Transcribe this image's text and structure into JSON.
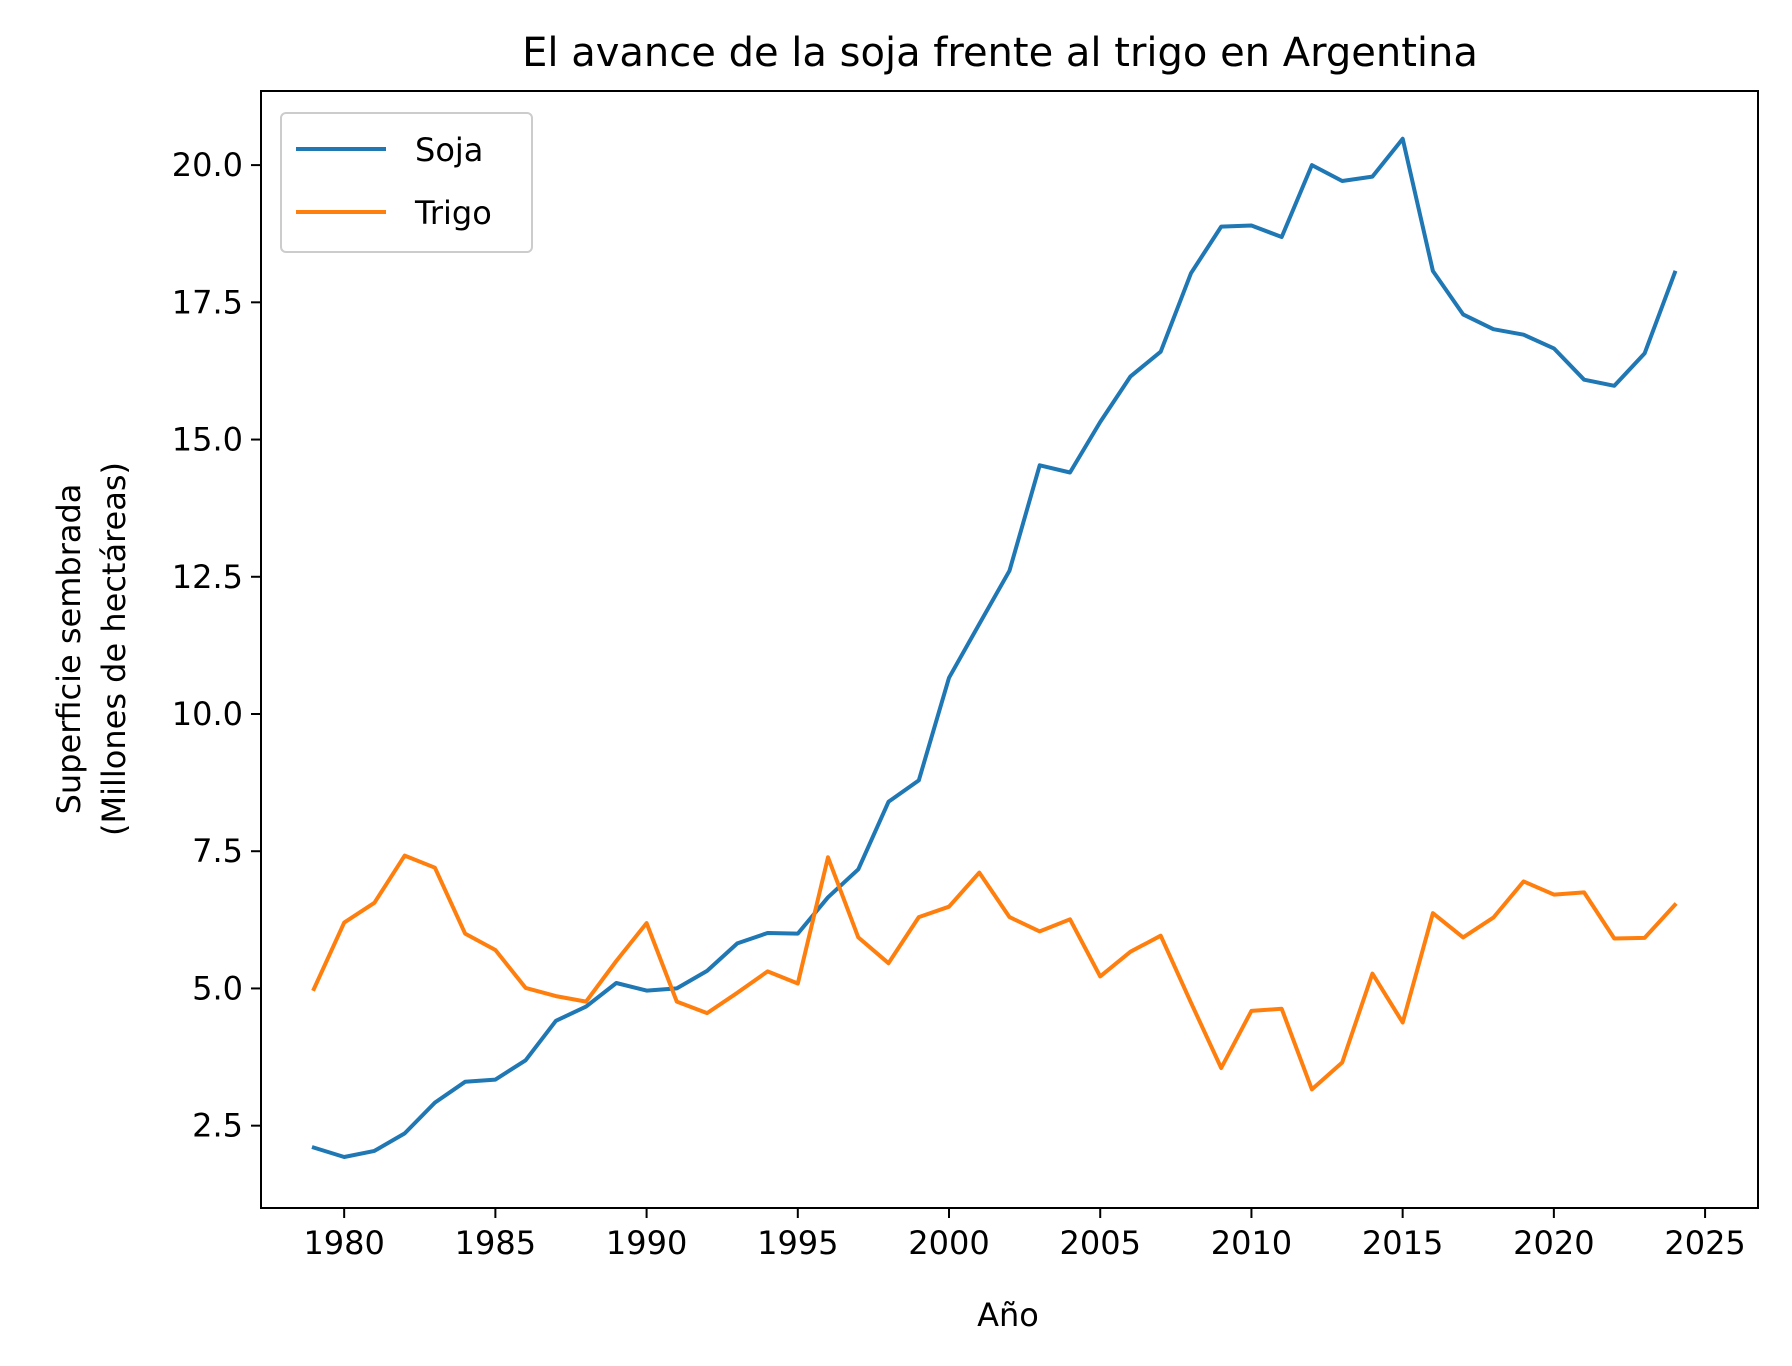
{
  "chart_data": {
    "type": "line",
    "title": "El avance de la soja frente al trigo en Argentina",
    "xlabel": "Año",
    "ylabel_lines": [
      "Superficie sembrada",
      "(Millones de hectáreas)"
    ],
    "xlim": [
      1977.25,
      2026.75
    ],
    "ylim": [
      1.0,
      21.35
    ],
    "x_ticks": [
      1980,
      1985,
      1990,
      1995,
      2000,
      2005,
      2010,
      2015,
      2020,
      2025
    ],
    "x_tick_labels": [
      "1980",
      "1985",
      "1990",
      "1995",
      "2000",
      "2005",
      "2010",
      "2015",
      "2020",
      "2025"
    ],
    "y_ticks": [
      2.5,
      5.0,
      7.5,
      10.0,
      12.5,
      15.0,
      17.5,
      20.0
    ],
    "y_tick_labels": [
      "2.5",
      "5.0",
      "7.5",
      "10.0",
      "12.5",
      "15.0",
      "17.5",
      "20.0"
    ],
    "grid": false,
    "legend_position": "top-left",
    "x": [
      1979,
      1980,
      1981,
      1982,
      1983,
      1984,
      1985,
      1986,
      1987,
      1988,
      1989,
      1990,
      1991,
      1992,
      1993,
      1994,
      1995,
      1996,
      1997,
      1998,
      1999,
      2000,
      2001,
      2002,
      2003,
      2004,
      2005,
      2006,
      2007,
      2008,
      2009,
      2010,
      2011,
      2012,
      2013,
      2014,
      2015,
      2016,
      2017,
      2018,
      2019,
      2020,
      2021,
      2022,
      2023,
      2024
    ],
    "series": [
      {
        "name": "Soja",
        "color": "#1f77b4",
        "values": [
          2.1,
          1.93,
          2.04,
          2.36,
          2.92,
          3.3,
          3.34,
          3.69,
          4.41,
          4.67,
          5.1,
          4.96,
          5.0,
          5.32,
          5.82,
          6.01,
          6.0,
          6.66,
          7.17,
          8.4,
          8.79,
          10.66,
          11.64,
          12.61,
          14.53,
          14.4,
          15.32,
          16.15,
          16.6,
          18.03,
          18.88,
          18.9,
          18.69,
          20.0,
          19.71,
          19.79,
          20.48,
          18.07,
          17.28,
          17.01,
          16.91,
          16.66,
          16.09,
          15.98,
          16.57,
          18.04
        ]
      },
      {
        "name": "Trigo",
        "color": "#ff7f0e",
        "values": [
          4.99,
          6.2,
          6.56,
          7.42,
          7.2,
          6.0,
          5.7,
          5.01,
          4.86,
          4.76,
          5.5,
          6.19,
          4.76,
          4.55,
          4.92,
          5.31,
          5.09,
          7.39,
          5.93,
          5.46,
          6.3,
          6.49,
          7.11,
          6.3,
          6.04,
          6.26,
          5.22,
          5.67,
          5.96,
          4.74,
          3.55,
          4.59,
          4.63,
          3.16,
          3.65,
          5.27,
          4.38,
          6.37,
          5.93,
          6.29,
          6.95,
          6.71,
          6.75,
          5.91,
          5.92,
          6.52
        ]
      }
    ]
  }
}
